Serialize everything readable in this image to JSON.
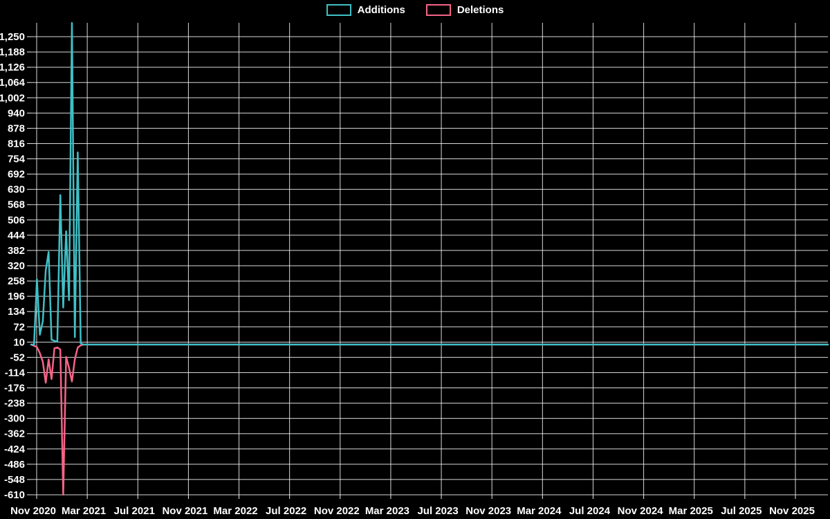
{
  "app": {
    "background_color": "#000000",
    "text_color": "#ffffff",
    "grid_color": "#f0f0f0"
  },
  "legend": {
    "items": [
      {
        "label": "Additions",
        "color": "#3fc0c7"
      },
      {
        "label": "Deletions",
        "color": "#f56487"
      }
    ]
  },
  "chart_data": {
    "type": "line",
    "title": "",
    "legend_position": "top-center",
    "grid": true,
    "x_axis": {
      "tick_labels": [
        "Nov 2020",
        "Mar 2021",
        "Jul 2021",
        "Nov 2021",
        "Mar 2022",
        "Jul 2022",
        "Nov 2022",
        "Mar 2023",
        "Jul 2023",
        "Nov 2023",
        "Mar 2024",
        "Jul 2024",
        "Nov 2024",
        "Mar 2025",
        "Jul 2025",
        "Nov 2025"
      ],
      "tick_interval": "4 months"
    },
    "y_axis": {
      "tick_values": [
        1250,
        1188,
        1126,
        1064,
        1002,
        940,
        878,
        816,
        754,
        692,
        630,
        568,
        506,
        444,
        382,
        320,
        258,
        196,
        134,
        72,
        10,
        -52,
        -114,
        -176,
        -238,
        -300,
        -362,
        -424,
        -486,
        -548,
        -610
      ],
      "tick_step": 62,
      "ylim": [
        -610,
        1306
      ]
    },
    "series_names": [
      "Additions",
      "Deletions"
    ],
    "series_colors": [
      "#3fc0c7",
      "#f56487"
    ],
    "weeks_columns": [
      "week_start",
      "additions",
      "deletions"
    ],
    "weeks": [
      [
        "2020-10-18",
        0,
        0
      ],
      [
        "2020-10-25",
        0,
        -5
      ],
      [
        "2020-11-01",
        265,
        -10
      ],
      [
        "2020-11-08",
        40,
        -35
      ],
      [
        "2020-11-15",
        95,
        -70
      ],
      [
        "2020-11-22",
        300,
        -155
      ],
      [
        "2020-11-29",
        376,
        -60
      ],
      [
        "2020-12-06",
        20,
        -140
      ],
      [
        "2020-12-13",
        15,
        -15
      ],
      [
        "2020-12-20",
        12,
        -12
      ],
      [
        "2020-12-27",
        607,
        -20
      ],
      [
        "2021-01-03",
        150,
        -610
      ],
      [
        "2021-01-10",
        460,
        -50
      ],
      [
        "2021-01-17",
        180,
        -95
      ],
      [
        "2021-01-24",
        1306,
        -150
      ],
      [
        "2021-01-31",
        30,
        -60
      ],
      [
        "2021-02-07",
        780,
        -12
      ],
      [
        "2021-02-14",
        5,
        -3
      ],
      [
        "2021-02-21",
        0,
        0
      ]
    ],
    "note": "Both series remain flat at 0 from late Feb 2021 through Nov 2025"
  }
}
